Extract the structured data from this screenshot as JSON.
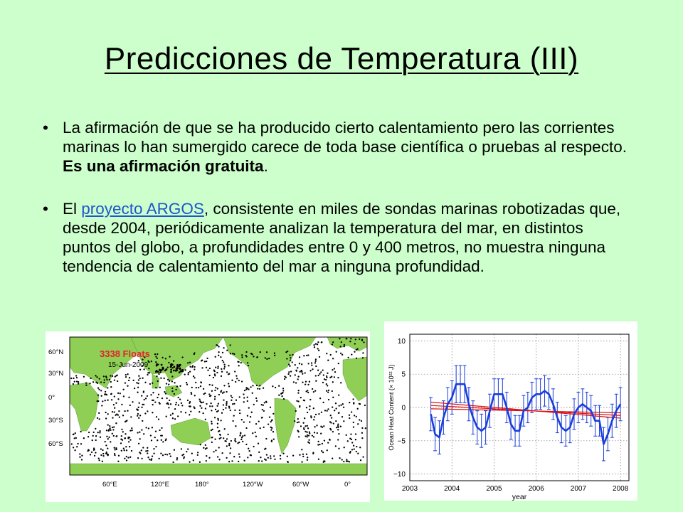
{
  "slide": {
    "title": "Predicciones de Temperatura (III)",
    "bullet1": {
      "text_before": "La afirmación de que se ha producido cierto calentamiento pero las corrientes marinas lo han sumergido carece de toda base científica o pruebas al respecto. ",
      "bold": "Es una afirmación gratuita",
      "text_after": "."
    },
    "bullet2": {
      "text_before": "El ",
      "link": "proyecto ARGOS",
      "text_after": ", consistente en miles de sondas marinas robotizadas que, desde 2004, periódicamente analizan la temperatura del mar, en distintos puntos del globo, a profundidades entre 0 y 400 metros, no muestra ninguna tendencia de calentamiento del mar a ninguna profundidad."
    }
  },
  "map": {
    "count": "3338",
    "count_suffix": " Floats",
    "date": "15-Jun-2009",
    "lat_labels": [
      "60°N",
      "30°N",
      "0°",
      "30°S",
      "60°S"
    ],
    "lon_labels": [
      "60°E",
      "120°E",
      "180°",
      "120°W",
      "60°W",
      "0°"
    ],
    "colors": {
      "ocean": "#ffffff",
      "land": "#8fcf55",
      "count": "#e8222a"
    }
  },
  "chart_data": {
    "type": "line",
    "title": "",
    "xlabel": "year",
    "ylabel": "Ocean Heat Content (× 10²² J)",
    "xlim": [
      2003,
      2008.2
    ],
    "ylim": [
      -11,
      11
    ],
    "x_ticks": [
      "2003",
      "2004",
      "2005",
      "2006",
      "2007",
      "2008"
    ],
    "y_ticks": [
      "10",
      "5",
      "0",
      "−5",
      "−10"
    ],
    "grid": true,
    "series": [
      {
        "x": [
          2003.5,
          2003.6,
          2003.7,
          2003.8,
          2003.9,
          2004.0,
          2004.1,
          2004.2,
          2004.3,
          2004.4,
          2004.5,
          2004.6,
          2004.7,
          2004.8,
          2004.9,
          2005.0,
          2005.1,
          2005.2,
          2005.3,
          2005.4,
          2005.5,
          2005.6,
          2005.7,
          2005.8,
          2005.9,
          2006.0,
          2006.1,
          2006.2,
          2006.3,
          2006.4,
          2006.5,
          2006.6,
          2006.7,
          2006.8,
          2006.9,
          2007.0,
          2007.1,
          2007.2,
          2007.3,
          2007.4,
          2007.5,
          2007.6,
          2007.7,
          2007.8,
          2007.9,
          2008.0
        ],
        "y": [
          -1.0,
          -4.0,
          -4.5,
          -1.5,
          0.5,
          1.5,
          3.5,
          3.5,
          3.5,
          0.5,
          -1.5,
          -3.0,
          -3.5,
          -3.0,
          -0.5,
          2.0,
          2.0,
          2.0,
          0.0,
          -2.5,
          -3.5,
          -3.5,
          -0.5,
          0.0,
          1.5,
          2.0,
          2.0,
          2.5,
          2.0,
          0.5,
          -1.5,
          -3.0,
          -3.5,
          -3.0,
          -1.0,
          0.0,
          0.5,
          0.0,
          -0.5,
          -2.0,
          -2.0,
          -5.5,
          -4.0,
          -2.0,
          -0.5,
          0.5
        ],
        "err": [
          2.5,
          2.5,
          2.5,
          2.5,
          2.5,
          2.5,
          2.8,
          2.8,
          2.8,
          2.5,
          2.5,
          2.5,
          2.5,
          2.5,
          2.5,
          2.3,
          2.3,
          2.3,
          2.3,
          2.3,
          2.3,
          2.3,
          2.3,
          2.3,
          2.3,
          2.3,
          2.3,
          2.3,
          2.3,
          2.3,
          2.3,
          2.3,
          2.3,
          2.3,
          2.3,
          2.3,
          2.3,
          2.3,
          2.3,
          2.3,
          2.3,
          2.5,
          2.5,
          2.5,
          2.5,
          2.5
        ],
        "color": "#1a3ddb"
      }
    ],
    "trend_lines": [
      {
        "x": [
          2003.5,
          2008.0
        ],
        "y": [
          0.3,
          -1.2
        ],
        "color": "#e01010"
      },
      {
        "x": [
          2003.5,
          2008.0
        ],
        "y": [
          -0.2,
          -0.8
        ],
        "color": "#e01010"
      },
      {
        "x": [
          2003.5,
          2008.0
        ],
        "y": [
          0.8,
          -1.6
        ],
        "color": "#e01010"
      }
    ]
  }
}
